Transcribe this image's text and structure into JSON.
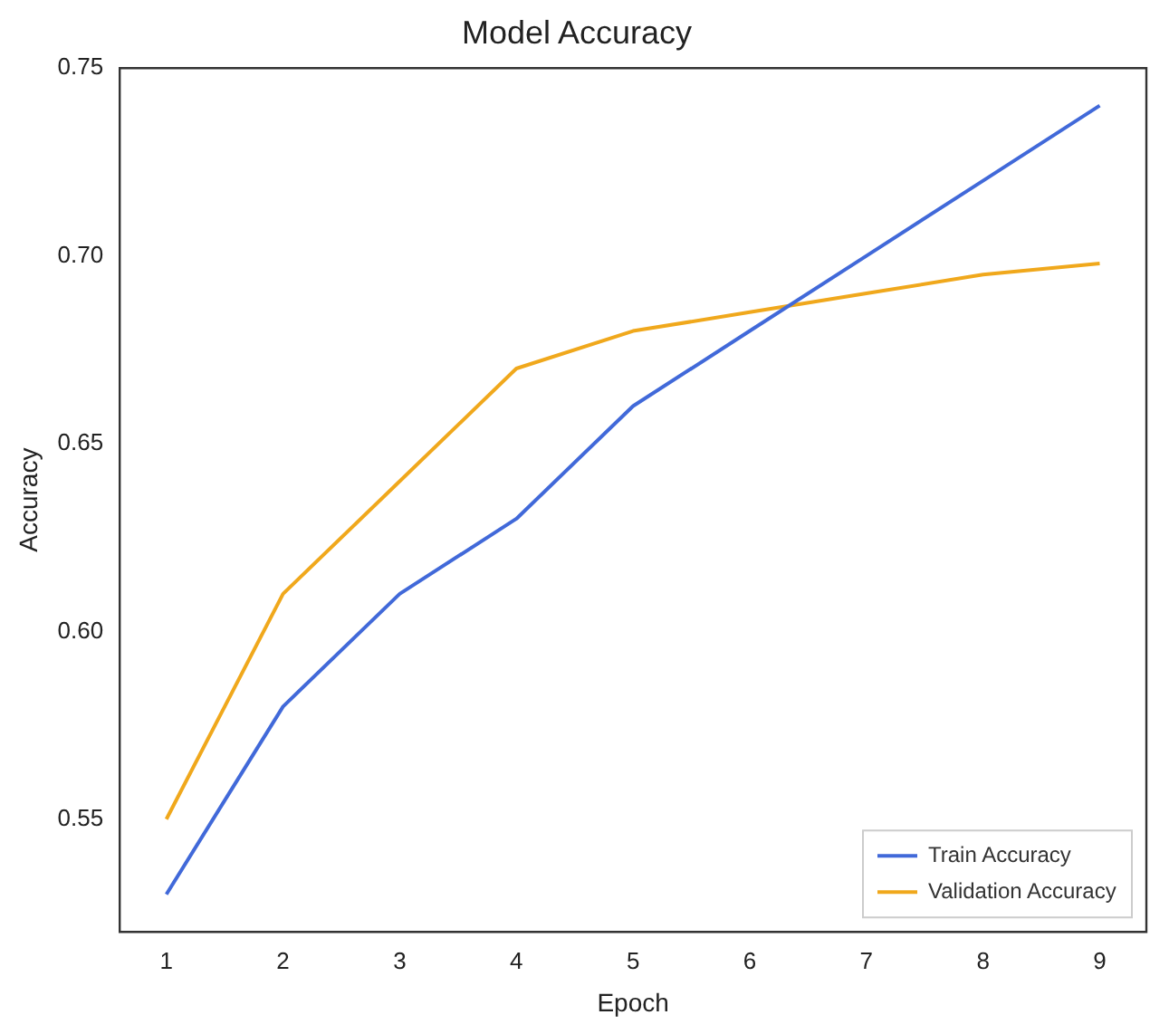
{
  "chart_data": {
    "type": "line",
    "title": "Model Accuracy",
    "xlabel": "Epoch",
    "ylabel": "Accuracy",
    "x": [
      1,
      2,
      3,
      4,
      5,
      6,
      7,
      8,
      9
    ],
    "series": [
      {
        "name": "Train Accuracy",
        "color": "#4169d9",
        "values": [
          0.53,
          0.58,
          0.61,
          0.63,
          0.66,
          0.68,
          0.7,
          0.72,
          0.74
        ]
      },
      {
        "name": "Validation Accuracy",
        "color": "#f0a81c",
        "values": [
          0.55,
          0.61,
          0.64,
          0.67,
          0.68,
          0.685,
          0.69,
          0.695,
          0.698
        ]
      }
    ],
    "xlim": [
      0.6,
      9.4
    ],
    "xticks": [
      1,
      2,
      3,
      4,
      5,
      6,
      7,
      8,
      9
    ],
    "ylim": [
      0.52,
      0.75
    ],
    "yticks": [
      {
        "value": 0.55,
        "label": "0.55"
      },
      {
        "value": 0.6,
        "label": "0.60"
      },
      {
        "value": 0.65,
        "label": "0.65"
      },
      {
        "value": 0.7,
        "label": "0.70"
      },
      {
        "value": 0.75,
        "label": "0.75"
      }
    ],
    "grid": false,
    "legend": "bottom right",
    "marker": "none",
    "line_style": "solid"
  }
}
